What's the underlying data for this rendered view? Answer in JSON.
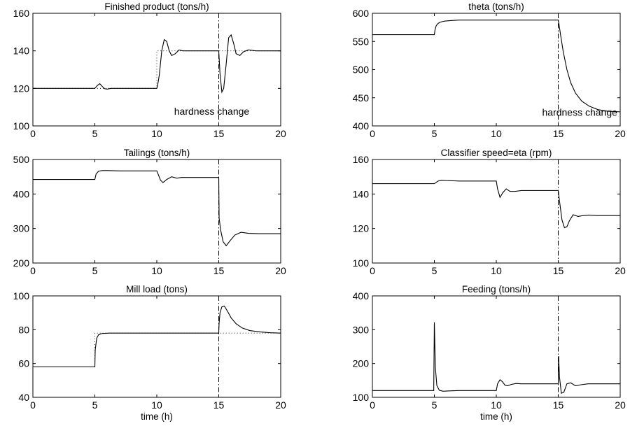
{
  "chart_data": [
    {
      "type": "line",
      "title": "Finished product (tons/h)",
      "xlabel": "",
      "xlim": [
        0,
        20
      ],
      "ylim": [
        100,
        160
      ],
      "xticks": [
        0,
        5,
        10,
        15,
        20
      ],
      "yticks": [
        100,
        120,
        140,
        160
      ],
      "series": [
        {
          "style": "solid",
          "x": [
            0,
            5,
            5.2,
            5.4,
            5.6,
            5.8,
            6.0,
            6.3,
            6.8,
            10,
            10.05,
            10.2,
            10.4,
            10.6,
            10.8,
            11.0,
            11.2,
            11.5,
            11.8,
            12.1,
            12.5,
            13,
            14,
            15,
            15.1,
            15.25,
            15.4,
            15.6,
            15.8,
            16.0,
            16.2,
            16.4,
            16.7,
            17.0,
            17.4,
            18,
            19,
            20
          ],
          "y": [
            120,
            120,
            121.5,
            122.5,
            121,
            119.8,
            119.6,
            120,
            120,
            120,
            121,
            127,
            140,
            146,
            145,
            140,
            137.5,
            138.5,
            140.5,
            140,
            140,
            140,
            140,
            140,
            128,
            118,
            120,
            133,
            147,
            148.5,
            144,
            138.5,
            137.5,
            139.5,
            140.5,
            140,
            140,
            140
          ]
        },
        {
          "style": "dotted",
          "x": [
            0,
            10,
            10,
            20
          ],
          "y": [
            120,
            120,
            140,
            140
          ]
        }
      ],
      "vline": 15,
      "annotation": {
        "text": "hardness change",
        "x": 11.4,
        "y": 106
      }
    },
    {
      "type": "line",
      "title": "theta (tons/h)",
      "xlabel": "",
      "xlim": [
        0,
        20
      ],
      "ylim": [
        400,
        600
      ],
      "xticks": [
        0,
        5,
        10,
        15,
        20
      ],
      "yticks": [
        400,
        450,
        500,
        550,
        600
      ],
      "series": [
        {
          "style": "solid",
          "x": [
            0,
            5,
            5.05,
            5.15,
            5.3,
            5.5,
            5.8,
            6.3,
            7,
            15,
            15.05,
            15.2,
            15.4,
            15.7,
            16.0,
            16.4,
            16.9,
            17.5,
            18.2,
            19,
            20
          ],
          "y": [
            562,
            562,
            570,
            578,
            582,
            584.5,
            586,
            587,
            588,
            588,
            582,
            560,
            532,
            500,
            477,
            458,
            444,
            435,
            429,
            426,
            425
          ]
        }
      ],
      "vline": 15,
      "annotation": {
        "text": "hardness change",
        "x": 13.7,
        "y": 418
      }
    },
    {
      "type": "line",
      "title": "Tailings (tons/h)",
      "xlabel": "",
      "xlim": [
        0,
        20
      ],
      "ylim": [
        200,
        500
      ],
      "xticks": [
        0,
        5,
        10,
        15,
        20
      ],
      "yticks": [
        200,
        300,
        400,
        500
      ],
      "series": [
        {
          "style": "solid",
          "x": [
            0,
            5,
            5.1,
            5.3,
            5.6,
            6,
            7,
            10,
            10.1,
            10.3,
            10.5,
            10.8,
            11.2,
            11.6,
            12,
            13,
            15,
            15.03,
            15.15,
            15.35,
            15.6,
            15.9,
            16.3,
            16.8,
            17.4,
            18.2,
            20
          ],
          "y": [
            442,
            442,
            458,
            466,
            468,
            468,
            467,
            467,
            458,
            440,
            433,
            442,
            450,
            446,
            448,
            448,
            448,
            330,
            296,
            262,
            250,
            264,
            281,
            289,
            286,
            285,
            285
          ]
        }
      ],
      "vline": 15
    },
    {
      "type": "line",
      "title": "Classifier speed=eta (rpm)",
      "xlabel": "",
      "xlim": [
        0,
        20
      ],
      "ylim": [
        100,
        160
      ],
      "xticks": [
        0,
        5,
        10,
        15,
        20
      ],
      "yticks": [
        100,
        120,
        140,
        160
      ],
      "series": [
        {
          "style": "solid",
          "x": [
            0,
            5,
            5.3,
            5.6,
            6,
            7,
            10,
            10.1,
            10.3,
            10.5,
            10.8,
            11.1,
            11.5,
            12,
            13,
            15,
            15.1,
            15.3,
            15.5,
            15.7,
            15.9,
            16.2,
            16.6,
            17.0,
            17.5,
            18.2,
            20
          ],
          "y": [
            146,
            146,
            147.5,
            148,
            147.8,
            147.5,
            147.5,
            143,
            138,
            140.5,
            143,
            141.5,
            141.5,
            142,
            142,
            142,
            136,
            125,
            120.5,
            121,
            124.5,
            128,
            127,
            127.5,
            127.8,
            127.5,
            127.5
          ]
        }
      ],
      "vline": 15
    },
    {
      "type": "line",
      "title": "Mill load (tons)",
      "xlabel": "time (h)",
      "xlim": [
        0,
        20
      ],
      "ylim": [
        40,
        100
      ],
      "xticks": [
        0,
        5,
        10,
        15,
        20
      ],
      "yticks": [
        40,
        60,
        80,
        100
      ],
      "series": [
        {
          "style": "solid",
          "x": [
            0,
            5,
            5.03,
            5.15,
            5.3,
            5.6,
            6.2,
            8,
            15,
            15.03,
            15.1,
            15.25,
            15.45,
            15.7,
            16.0,
            16.4,
            16.9,
            17.5,
            18.3,
            19.2,
            20
          ],
          "y": [
            58,
            58,
            68,
            75,
            77,
            77.8,
            78,
            78,
            78,
            84,
            90,
            93.5,
            94,
            91,
            87,
            83.5,
            81,
            79.5,
            78.7,
            78.2,
            78
          ]
        },
        {
          "style": "dotted",
          "x": [
            0,
            5,
            5,
            20
          ],
          "y": [
            58,
            58,
            78,
            78
          ]
        }
      ],
      "vline": 15
    },
    {
      "type": "line",
      "title": "Feeding (tons/h)",
      "xlabel": "time (h)",
      "xlim": [
        0,
        20
      ],
      "ylim": [
        100,
        400
      ],
      "xticks": [
        0,
        5,
        10,
        15,
        20
      ],
      "yticks": [
        100,
        200,
        300,
        400
      ],
      "series": [
        {
          "style": "solid",
          "x": [
            0,
            4.95,
            5.0,
            5.08,
            5.2,
            5.4,
            5.7,
            6.2,
            7,
            10,
            10.1,
            10.3,
            10.5,
            10.7,
            10.9,
            11.2,
            11.6,
            12,
            13,
            15,
            15.03,
            15.1,
            15.25,
            15.45,
            15.7,
            16.0,
            16.4,
            16.8,
            17.4,
            18.2,
            20
          ],
          "y": [
            120,
            120,
            322,
            190,
            135,
            121,
            118,
            119,
            120,
            120,
            140,
            152,
            146,
            136,
            134,
            138,
            141,
            140,
            140,
            140,
            222,
            160,
            112,
            115,
            140,
            143,
            134,
            137,
            140,
            140,
            140
          ]
        }
      ],
      "vline": 15
    }
  ]
}
